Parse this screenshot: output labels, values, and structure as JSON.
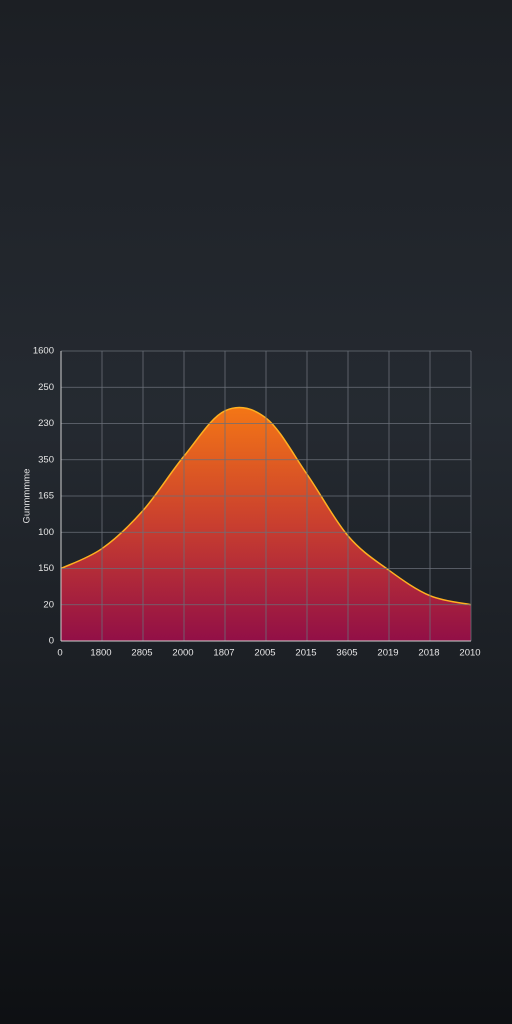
{
  "chart_data": {
    "type": "area",
    "ylabel": "Gunmmmme",
    "x": [
      0,
      1,
      2,
      3,
      4,
      5,
      6,
      7,
      8,
      9,
      10
    ],
    "values": [
      2.0,
      2.55,
      3.6,
      5.1,
      6.35,
      6.15,
      4.6,
      2.9,
      1.95,
      1.25,
      1.0
    ],
    "color": "#ff7a1a",
    "xlim": [
      0,
      10
    ],
    "xticks": [
      {
        "value": 0,
        "label": "0"
      },
      {
        "value": 1,
        "label": "1800"
      },
      {
        "value": 2,
        "label": "2805"
      },
      {
        "value": 3,
        "label": "2000"
      },
      {
        "value": 4,
        "label": "1807"
      },
      {
        "value": 5,
        "label": "2005"
      },
      {
        "value": 6,
        "label": "2015"
      },
      {
        "value": 7,
        "label": "3605"
      },
      {
        "value": 8,
        "label": "2019"
      },
      {
        "value": 9,
        "label": "2018"
      },
      {
        "value": 10,
        "label": "2010"
      }
    ],
    "ylim": [
      0,
      8
    ],
    "yticks": [
      0,
      {
        "value": 1,
        "label": "20"
      },
      {
        "value": 2,
        "label": "150"
      },
      {
        "value": 3,
        "label": "100"
      },
      {
        "value": 4,
        "label": "165"
      },
      {
        "value": 5,
        "label": "350"
      },
      {
        "value": 6,
        "label": "230"
      },
      {
        "value": 7,
        "label": "250"
      },
      {
        "value": 8,
        "label": "1600"
      }
    ],
    "grid": true
  }
}
